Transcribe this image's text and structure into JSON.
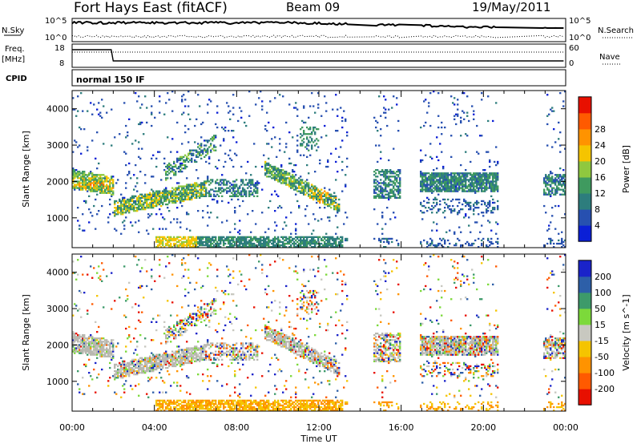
{
  "header": {
    "station": "Fort Hays East (fitACF)",
    "beam": "Beam 09",
    "date": "19/May/2011"
  },
  "strip_labels": {
    "nsky": "N.Sky",
    "nsearch": "N.Search",
    "freq_line1": "Freq.",
    "freq_line2": "[MHz]",
    "nave": "Nave",
    "cpid": "CPID",
    "cpid_value": "normal 150 IF",
    "nsky_ticks": [
      "10^5",
      "10^0"
    ],
    "nsearch_ticks": [
      "10^5",
      "10^0"
    ],
    "freq_ticks": [
      "18",
      "8"
    ],
    "nave_ticks": [
      "60",
      "0"
    ]
  },
  "chart_data": [
    {
      "type": "heatmap",
      "ylabel": "Slant Range [km]",
      "xlabel": "Time UT",
      "x_ticks": [
        "00:00",
        "04:00",
        "08:00",
        "12:00",
        "16:00",
        "20:00",
        "00:00"
      ],
      "y_ticks": [
        1000,
        2000,
        3000,
        4000
      ],
      "xlim_hours": [
        0,
        24
      ],
      "ylim": [
        180,
        4500
      ],
      "colorbar": {
        "label": "Power [dB]",
        "ticks": [
          4,
          8,
          12,
          16,
          20,
          24,
          28
        ],
        "colors": [
          "#0b1fd6",
          "#2750b0",
          "#2d7d7d",
          "#3f9a5f",
          "#8fc83f",
          "#f5c400",
          "#ff9300",
          "#ff5a00",
          "#e81000"
        ]
      },
      "features": [
        {
          "name": "E-region / near-range band",
          "time_start": 4.0,
          "time_end": 13.0,
          "range_km": [
            250,
            450
          ],
          "power_db": 22
        },
        {
          "name": "evening tail",
          "time_start": 0.0,
          "time_end": 2.0,
          "range_km": [
            1800,
            2300
          ],
          "power_db": 26
        },
        {
          "name": "descending band",
          "time_start": 2.0,
          "time_end": 6.0,
          "range_km": [
            1100,
            1700
          ],
          "power_db": 18
        },
        {
          "name": "midday descending arc",
          "time_start": 9.0,
          "time_end": 13.0,
          "range_km": [
            1300,
            2400
          ],
          "power_db": 16
        },
        {
          "name": "afternoon band",
          "time_start": 14.8,
          "time_end": 20.6,
          "range_km": [
            1750,
            2150
          ],
          "power_db": 14
        }
      ]
    },
    {
      "type": "heatmap",
      "ylabel": "Slant Range [km]",
      "xlabel": "Time UT",
      "x_ticks": [
        "00:00",
        "04:00",
        "08:00",
        "12:00",
        "16:00",
        "20:00",
        "00:00"
      ],
      "y_ticks": [
        1000,
        2000,
        3000,
        4000
      ],
      "xlim_hours": [
        0,
        24
      ],
      "ylim": [
        180,
        4500
      ],
      "colorbar": {
        "label": "Velocity [m s^-1]",
        "ticks": [
          200,
          100,
          50,
          15,
          -15,
          -50,
          -100,
          -200
        ],
        "colors": [
          "#1a23c9",
          "#2d5fa8",
          "#3d9a6a",
          "#7cd93a",
          "#c8c8c0",
          "#f5c400",
          "#ff9300",
          "#ff5a00",
          "#e81000"
        ]
      },
      "ground_scatter_color": "#b8b8b0"
    }
  ]
}
